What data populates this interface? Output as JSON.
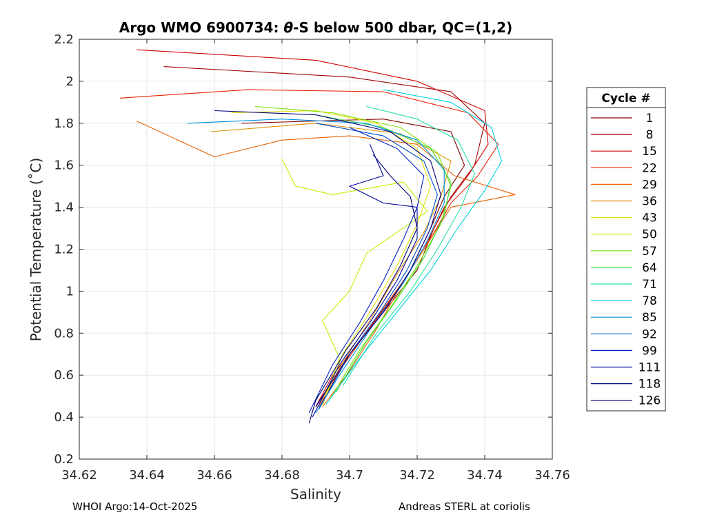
{
  "chart_data": {
    "type": "line",
    "title": "Argo WMO 6900734: θ-S below 500 dbar,  QC=(1,2)",
    "title_parts": {
      "prefix": "Argo WMO 6900734: ",
      "theta": "θ",
      "suffix": "-S below 500 dbar,  QC=(1,2)"
    },
    "xlabel": "Salinity",
    "ylabel": "Potential Temperature (˚C)",
    "xlim": [
      34.62,
      34.76
    ],
    "ylim": [
      0.2,
      2.2
    ],
    "xticks": [
      "34.62",
      "34.64",
      "34.66",
      "34.68",
      "34.7",
      "34.72",
      "34.74",
      "34.76"
    ],
    "yticks": [
      "0.2",
      "0.4",
      "0.6",
      "0.8",
      "1",
      "1.2",
      "1.4",
      "1.6",
      "1.8",
      "2",
      "2.2"
    ],
    "grid": true,
    "legend": {
      "title": "Cycle #",
      "position": "right",
      "entries": [
        {
          "label": "1",
          "color": "#800000"
        },
        {
          "label": "8",
          "color": "#a00000"
        },
        {
          "label": "15",
          "color": "#d00000"
        },
        {
          "label": "22",
          "color": "#e82000"
        },
        {
          "label": "29",
          "color": "#e86000"
        },
        {
          "label": "36",
          "color": "#e09000"
        },
        {
          "label": "43",
          "color": "#e0e000"
        },
        {
          "label": "50",
          "color": "#c0f000"
        },
        {
          "label": "57",
          "color": "#80e000"
        },
        {
          "label": "64",
          "color": "#40e040"
        },
        {
          "label": "71",
          "color": "#20e0a0"
        },
        {
          "label": "78",
          "color": "#00d0e0"
        },
        {
          "label": "85",
          "color": "#0090e0"
        },
        {
          "label": "92",
          "color": "#0050d0"
        },
        {
          "label": "99",
          "color": "#0020c0"
        },
        {
          "label": "111",
          "color": "#0000a0"
        },
        {
          "label": "118",
          "color": "#000080"
        },
        {
          "label": "126",
          "color": "#000070"
        }
      ]
    },
    "series": [
      {
        "name": "1",
        "color": "#800000",
        "points": [
          [
            34.668,
            1.8
          ],
          [
            34.71,
            1.82
          ],
          [
            34.73,
            1.76
          ],
          [
            34.734,
            1.6
          ],
          [
            34.728,
            1.45
          ],
          [
            34.724,
            1.3
          ],
          [
            34.718,
            1.1
          ],
          [
            34.71,
            0.9
          ],
          [
            34.7,
            0.7
          ],
          [
            34.69,
            0.45
          ]
        ]
      },
      {
        "name": "8",
        "color": "#a00000",
        "points": [
          [
            34.645,
            2.07
          ],
          [
            34.7,
            2.02
          ],
          [
            34.73,
            1.95
          ],
          [
            34.74,
            1.8
          ],
          [
            34.737,
            1.6
          ],
          [
            34.73,
            1.45
          ],
          [
            34.725,
            1.3
          ],
          [
            34.72,
            1.1
          ],
          [
            34.71,
            0.9
          ],
          [
            34.7,
            0.7
          ],
          [
            34.691,
            0.45
          ]
        ]
      },
      {
        "name": "15",
        "color": "#d00000",
        "points": [
          [
            34.637,
            2.15
          ],
          [
            34.69,
            2.1
          ],
          [
            34.72,
            2.0
          ],
          [
            34.74,
            1.86
          ],
          [
            34.741,
            1.7
          ],
          [
            34.735,
            1.55
          ],
          [
            34.728,
            1.4
          ],
          [
            34.722,
            1.2
          ],
          [
            34.714,
            1.0
          ],
          [
            34.705,
            0.8
          ],
          [
            34.695,
            0.6
          ],
          [
            34.69,
            0.45
          ]
        ]
      },
      {
        "name": "22",
        "color": "#e82000",
        "points": [
          [
            34.632,
            1.92
          ],
          [
            34.67,
            1.96
          ],
          [
            34.71,
            1.95
          ],
          [
            34.735,
            1.85
          ],
          [
            34.744,
            1.7
          ],
          [
            34.738,
            1.55
          ],
          [
            34.73,
            1.42
          ],
          [
            34.724,
            1.25
          ],
          [
            34.716,
            1.05
          ],
          [
            34.707,
            0.85
          ],
          [
            34.697,
            0.62
          ],
          [
            34.69,
            0.45
          ]
        ]
      },
      {
        "name": "29",
        "color": "#e86000",
        "points": [
          [
            34.637,
            1.81
          ],
          [
            34.66,
            1.64
          ],
          [
            34.68,
            1.72
          ],
          [
            34.7,
            1.74
          ],
          [
            34.72,
            1.7
          ],
          [
            34.731,
            1.55
          ],
          [
            34.749,
            1.46
          ],
          [
            34.73,
            1.4
          ],
          [
            34.724,
            1.25
          ],
          [
            34.716,
            1.05
          ],
          [
            34.708,
            0.82
          ],
          [
            34.7,
            0.62
          ],
          [
            34.692,
            0.45
          ]
        ]
      },
      {
        "name": "36",
        "color": "#e09000",
        "points": [
          [
            34.659,
            1.76
          ],
          [
            34.69,
            1.8
          ],
          [
            34.715,
            1.75
          ],
          [
            34.73,
            1.62
          ],
          [
            34.727,
            1.45
          ],
          [
            34.722,
            1.28
          ],
          [
            34.714,
            1.08
          ],
          [
            34.706,
            0.86
          ],
          [
            34.698,
            0.66
          ],
          [
            34.691,
            0.46
          ]
        ]
      },
      {
        "name": "43",
        "color": "#e0e000",
        "points": [
          [
            34.665,
            1.85
          ],
          [
            34.69,
            1.86
          ],
          [
            34.708,
            1.8
          ],
          [
            34.72,
            1.68
          ],
          [
            34.724,
            1.5
          ],
          [
            34.72,
            1.32
          ],
          [
            34.714,
            1.12
          ],
          [
            34.706,
            0.9
          ],
          [
            34.698,
            0.7
          ],
          [
            34.692,
            0.46
          ]
        ]
      },
      {
        "name": "50",
        "color": "#c0f000",
        "points": [
          [
            34.68,
            1.63
          ],
          [
            34.684,
            1.5
          ],
          [
            34.695,
            1.46
          ],
          [
            34.716,
            1.52
          ],
          [
            34.723,
            1.38
          ],
          [
            34.705,
            1.18
          ],
          [
            34.7,
            1.0
          ],
          [
            34.692,
            0.86
          ],
          [
            34.697,
            0.68
          ],
          [
            34.692,
            0.46
          ]
        ]
      },
      {
        "name": "57",
        "color": "#80e000",
        "points": [
          [
            34.672,
            1.88
          ],
          [
            34.695,
            1.85
          ],
          [
            34.715,
            1.78
          ],
          [
            34.726,
            1.66
          ],
          [
            34.73,
            1.5
          ],
          [
            34.727,
            1.32
          ],
          [
            34.72,
            1.12
          ],
          [
            34.712,
            0.92
          ],
          [
            34.703,
            0.72
          ],
          [
            34.694,
            0.48
          ]
        ]
      },
      {
        "name": "64",
        "color": "#40e040",
        "points": [
          [
            34.69,
            1.84
          ],
          [
            34.71,
            1.78
          ],
          [
            34.724,
            1.68
          ],
          [
            34.73,
            1.52
          ],
          [
            34.728,
            1.36
          ],
          [
            34.722,
            1.16
          ],
          [
            34.714,
            0.96
          ],
          [
            34.705,
            0.76
          ],
          [
            34.696,
            0.52
          ]
        ]
      },
      {
        "name": "71",
        "color": "#20e0a0",
        "points": [
          [
            34.705,
            1.88
          ],
          [
            34.72,
            1.82
          ],
          [
            34.732,
            1.72
          ],
          [
            34.737,
            1.56
          ],
          [
            34.733,
            1.4
          ],
          [
            34.726,
            1.2
          ],
          [
            34.718,
            1.0
          ],
          [
            34.708,
            0.8
          ],
          [
            34.698,
            0.55
          ]
        ]
      },
      {
        "name": "78",
        "color": "#00d0e0",
        "points": [
          [
            34.71,
            1.96
          ],
          [
            34.73,
            1.9
          ],
          [
            34.742,
            1.78
          ],
          [
            34.745,
            1.62
          ],
          [
            34.74,
            1.48
          ],
          [
            34.732,
            1.3
          ],
          [
            34.724,
            1.1
          ],
          [
            34.714,
            0.9
          ],
          [
            34.703,
            0.68
          ],
          [
            34.693,
            0.46
          ]
        ]
      },
      {
        "name": "85",
        "color": "#0090e0",
        "points": [
          [
            34.652,
            1.8
          ],
          [
            34.68,
            1.82
          ],
          [
            34.705,
            1.8
          ],
          [
            34.72,
            1.72
          ],
          [
            34.728,
            1.58
          ],
          [
            34.728,
            1.42
          ],
          [
            34.723,
            1.24
          ],
          [
            34.716,
            1.04
          ],
          [
            34.707,
            0.84
          ],
          [
            34.697,
            0.6
          ],
          [
            34.69,
            0.42
          ]
        ]
      },
      {
        "name": "92",
        "color": "#0050d0",
        "points": [
          [
            34.69,
            1.8
          ],
          [
            34.71,
            1.74
          ],
          [
            34.722,
            1.62
          ],
          [
            34.726,
            1.46
          ],
          [
            34.723,
            1.3
          ],
          [
            34.717,
            1.1
          ],
          [
            34.709,
            0.9
          ],
          [
            34.7,
            0.7
          ],
          [
            34.691,
            0.44
          ]
        ]
      },
      {
        "name": "99",
        "color": "#0020c0",
        "points": [
          [
            34.7,
            1.78
          ],
          [
            34.714,
            1.68
          ],
          [
            34.722,
            1.55
          ],
          [
            34.72,
            1.4
          ],
          [
            34.716,
            1.25
          ],
          [
            34.71,
            1.05
          ],
          [
            34.703,
            0.85
          ],
          [
            34.695,
            0.65
          ],
          [
            34.688,
            0.42
          ]
        ]
      },
      {
        "name": "111",
        "color": "#0000a0",
        "points": [
          [
            34.706,
            1.7
          ],
          [
            34.71,
            1.55
          ],
          [
            34.7,
            1.5
          ],
          [
            34.71,
            1.42
          ],
          [
            34.72,
            1.4
          ],
          [
            34.72,
            1.25
          ],
          [
            34.714,
            1.05
          ],
          [
            34.706,
            0.85
          ],
          [
            34.697,
            0.65
          ],
          [
            34.689,
            0.4
          ]
        ]
      },
      {
        "name": "118",
        "color": "#000080",
        "points": [
          [
            34.66,
            1.86
          ],
          [
            34.69,
            1.84
          ],
          [
            34.712,
            1.76
          ],
          [
            34.724,
            1.62
          ],
          [
            34.727,
            1.46
          ],
          [
            34.724,
            1.3
          ],
          [
            34.718,
            1.1
          ],
          [
            34.71,
            0.9
          ],
          [
            34.7,
            0.7
          ],
          [
            34.69,
            0.45
          ]
        ]
      },
      {
        "name": "126",
        "color": "#000070",
        "points": [
          [
            34.707,
            1.65
          ],
          [
            34.712,
            1.55
          ],
          [
            34.718,
            1.45
          ],
          [
            34.72,
            1.3
          ],
          [
            34.715,
            1.12
          ],
          [
            34.708,
            0.92
          ],
          [
            34.699,
            0.72
          ],
          [
            34.69,
            0.48
          ],
          [
            34.688,
            0.37
          ]
        ]
      }
    ]
  },
  "footer": {
    "left": "WHOI Argo:14-Oct-2025",
    "right": "Andreas STERL at coriolis"
  }
}
